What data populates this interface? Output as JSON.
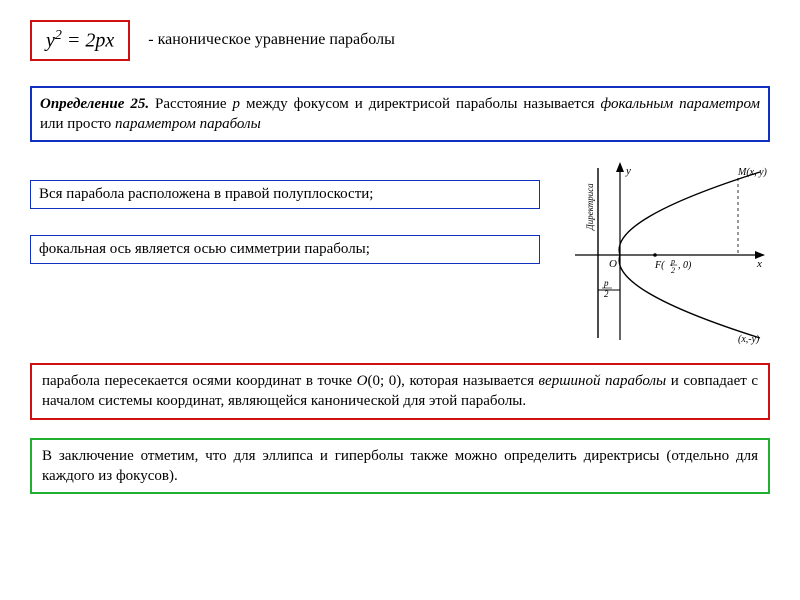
{
  "formula": {
    "html": "<span class='ital'>y</span><sup>2</sup> = 2<span class='ital'>px</span>"
  },
  "caption": "- каноническое уравнение параболы",
  "definition": {
    "label": "Определение 25.",
    "html": " Расстояние <span class='ital'>p</span> между фокусом и директрисой параболы называется <span class='ital'>фокальным параметром</span> или просто <span class='ital'>параметром параболы</span>"
  },
  "box_a": "Вся парабола расположена в правой полуплоскости;",
  "box_b": "фокальная ось является осью симметрии параболы;",
  "red_text_html": "парабола пересекается осями координат в точке <span class='ital'>O</span>(0; 0), которая называется <span class='ital'>вершиной параболы</span> и совпадает с началом системы координат, являющейся канонической для этой параболы.",
  "green_text": "В заключение отметим, что для эллипса и гиперболы также можно определить директрисы (отдельно для каждого из фокусов).",
  "diagram": {
    "colors": {
      "stroke": "#000000"
    },
    "labels": {
      "y": "y",
      "x": "x",
      "O": "O",
      "F": "F (p/2, 0)",
      "M1": "M(x, y)",
      "M2": "(x,-y)",
      "dir": "Директриса",
      "p2": "p/2"
    }
  }
}
